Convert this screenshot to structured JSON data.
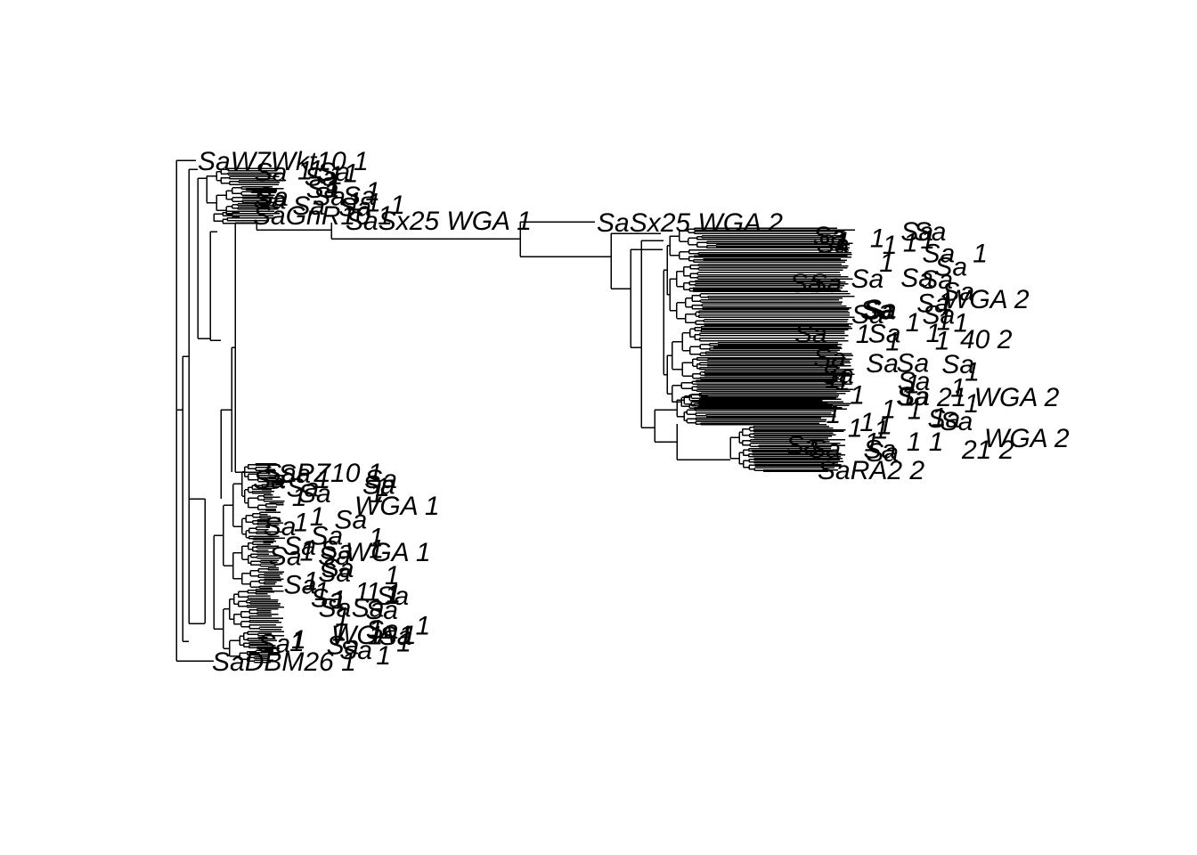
{
  "tree": {
    "line_color": "#000000",
    "background": "#ffffff",
    "tip_labels": [
      "SaW7Wkt10 1",
      "SaGnR10 1",
      "SaSx25 WGA 1",
      "SaSx25 WGA 2",
      "WGA 2",
      "40 2",
      "21 WGA 2",
      "WGA 2",
      "21 2",
      "SaRA2 2",
      "SaPZ10 1",
      "WGA 1",
      "WGA 1",
      "1",
      "WGA 1",
      "SaDBM26 1"
    ]
  }
}
